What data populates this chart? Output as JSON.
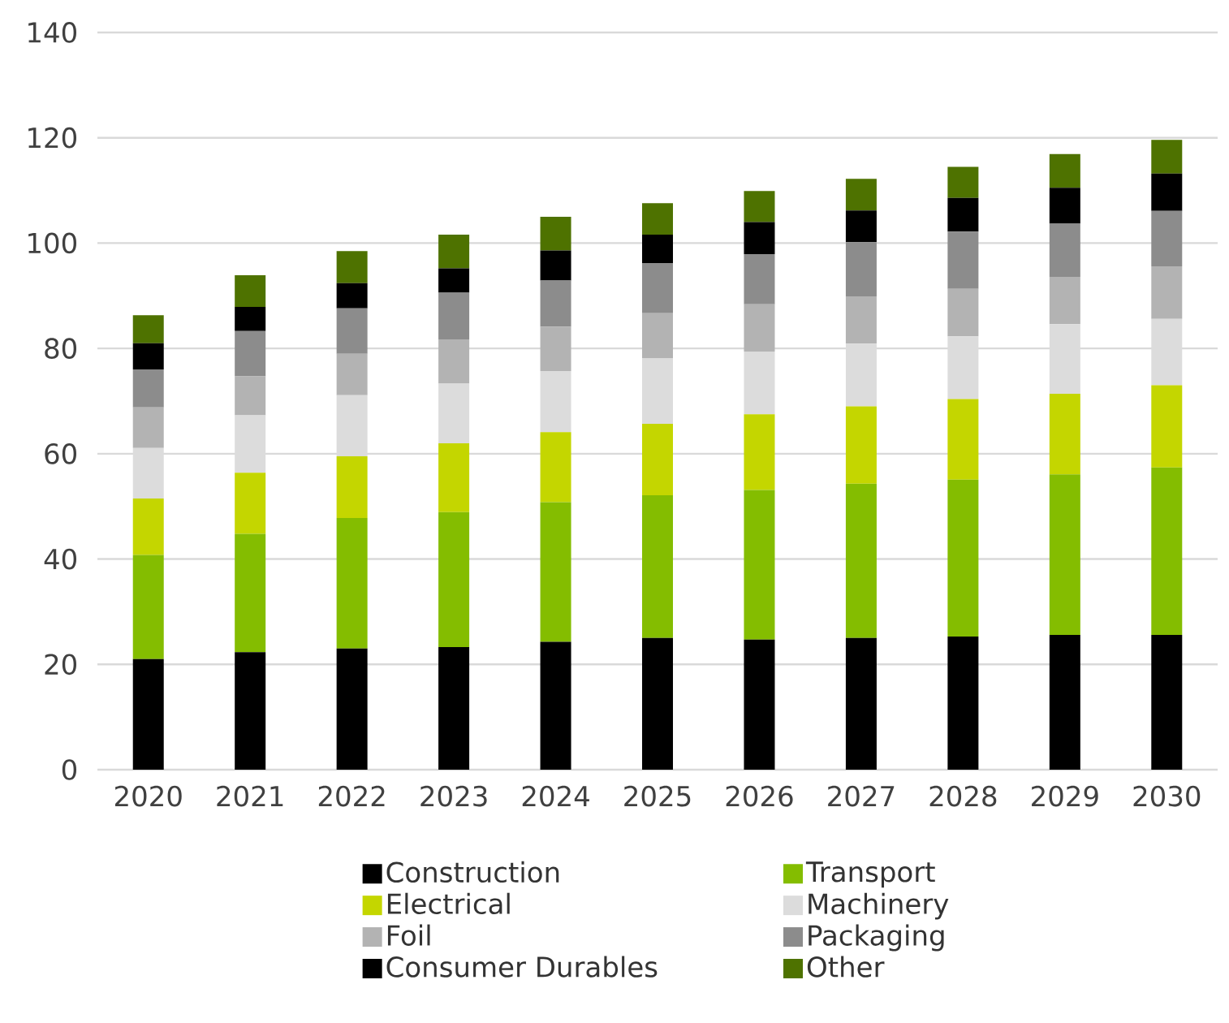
{
  "chart_data": {
    "type": "bar",
    "stacked": true,
    "categories": [
      "2020",
      "2021",
      "2022",
      "2023",
      "2024",
      "2025",
      "2026",
      "2027",
      "2028",
      "2029",
      "2030"
    ],
    "series": [
      {
        "name": "Construction",
        "color": "#000000",
        "values": [
          21.0,
          22.3,
          23.0,
          23.3,
          24.3,
          25.0,
          24.7,
          25.0,
          25.3,
          25.6,
          25.6
        ]
      },
      {
        "name": "Transport",
        "color": "#84bd00",
        "values": [
          19.8,
          22.5,
          24.8,
          25.6,
          26.5,
          27.1,
          28.4,
          29.3,
          29.8,
          30.5,
          31.8
        ]
      },
      {
        "name": "Electrical",
        "color": "#c4d600",
        "values": [
          10.7,
          11.6,
          11.7,
          13.1,
          13.3,
          13.6,
          14.4,
          14.7,
          15.3,
          15.3,
          15.6
        ]
      },
      {
        "name": "Machinery",
        "color": "#dcdcdc",
        "values": [
          9.6,
          10.9,
          11.6,
          11.3,
          11.6,
          12.4,
          11.9,
          11.9,
          11.9,
          13.2,
          12.6
        ]
      },
      {
        "name": "Foil",
        "color": "#b3b3b3",
        "values": [
          7.7,
          7.4,
          7.9,
          8.4,
          8.4,
          8.6,
          9.0,
          9.0,
          9.0,
          9.0,
          10.0
        ]
      },
      {
        "name": "Packaging",
        "color": "#8c8c8c",
        "values": [
          7.2,
          8.6,
          8.6,
          8.9,
          8.8,
          9.5,
          9.5,
          10.3,
          10.9,
          10.1,
          10.5
        ]
      },
      {
        "name": "Consumer Durables",
        "color": "#000000",
        "values": [
          5.0,
          4.6,
          4.8,
          4.6,
          5.7,
          5.4,
          6.1,
          6.0,
          6.4,
          6.8,
          7.1
        ]
      },
      {
        "name": "Other",
        "color": "#4e7200",
        "values": [
          5.3,
          6.0,
          6.1,
          6.4,
          6.4,
          6.0,
          5.9,
          6.0,
          5.9,
          6.4,
          6.4
        ]
      }
    ],
    "ylim": [
      0,
      140
    ],
    "yticks": [
      0,
      20,
      40,
      60,
      80,
      100,
      120,
      140
    ],
    "grid": "y",
    "legend": "bottom"
  }
}
